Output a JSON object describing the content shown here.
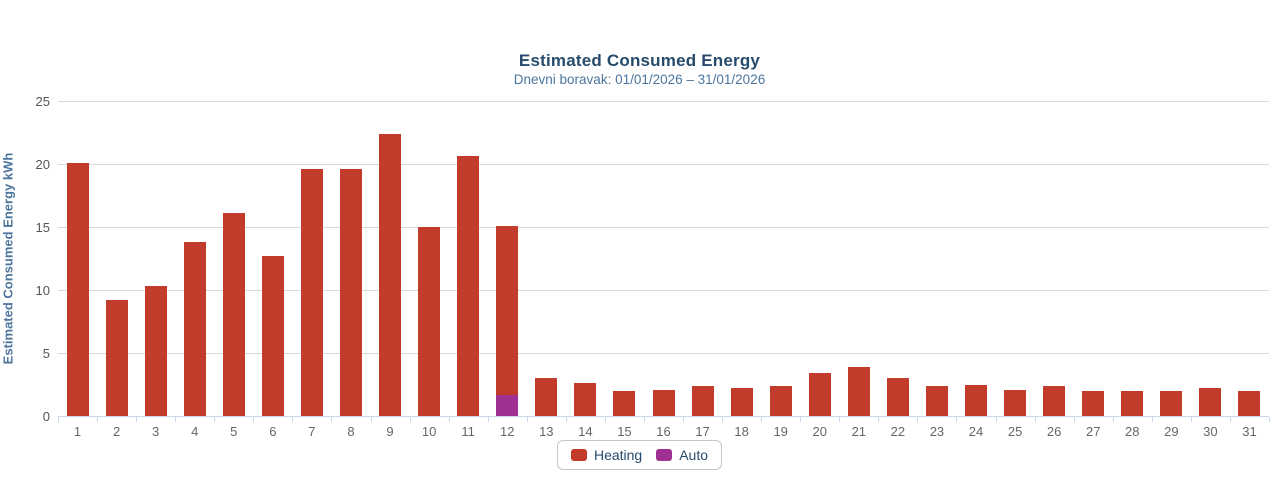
{
  "chart": {
    "title": "Estimated Consumed Energy",
    "subtitle": "Dnevni boravak: 01/01/2026 – 31/01/2026",
    "y_axis_title": "Estimated Consumed Energy kWh"
  },
  "colors": {
    "title": "#274b6d",
    "subtitle": "#4d759e",
    "y_axis_title": "#4d759e",
    "heating": "#c23b2b",
    "auto": "#9e3191",
    "gridline": "#d9d9d9",
    "axis_line": "#ccd6eb",
    "tick_label": "#666666"
  },
  "legend": {
    "items": [
      {
        "label": "Heating",
        "color": "#c23b2b"
      },
      {
        "label": "Auto",
        "color": "#9e3191"
      }
    ]
  },
  "chart_data": {
    "type": "bar",
    "stacked": true,
    "title": "Estimated Consumed Energy",
    "subtitle": "Dnevni boravak: 01/01/2026 – 31/01/2026",
    "xlabel": "",
    "ylabel": "Estimated Consumed Energy kWh",
    "ylim": [
      0,
      25
    ],
    "yticks": [
      0,
      5,
      10,
      15,
      20,
      25
    ],
    "grid": "horizontal",
    "legend_position": "bottom",
    "categories": [
      "1",
      "2",
      "3",
      "4",
      "5",
      "6",
      "7",
      "8",
      "9",
      "10",
      "11",
      "12",
      "13",
      "14",
      "15",
      "16",
      "17",
      "18",
      "19",
      "20",
      "21",
      "22",
      "23",
      "24",
      "25",
      "26",
      "27",
      "28",
      "29",
      "30",
      "31"
    ],
    "series": [
      {
        "name": "Heating",
        "color": "#c23b2b",
        "values": [
          20.1,
          9.2,
          10.3,
          13.8,
          16.1,
          12.7,
          19.6,
          19.6,
          22.4,
          15.0,
          20.6,
          13.4,
          3.0,
          2.6,
          2.0,
          2.1,
          2.4,
          2.2,
          2.4,
          3.4,
          3.9,
          3.0,
          2.4,
          2.5,
          2.1,
          2.4,
          2.0,
          2.0,
          2.0,
          2.2,
          2.0
        ]
      },
      {
        "name": "Auto",
        "color": "#9e3191",
        "values": [
          0,
          0,
          0,
          0,
          0,
          0,
          0,
          0,
          0,
          0,
          0,
          1.7,
          0,
          0,
          0,
          0,
          0,
          0,
          0,
          0,
          0,
          0,
          0,
          0,
          0,
          0,
          0,
          0,
          0,
          0,
          0
        ]
      }
    ]
  }
}
